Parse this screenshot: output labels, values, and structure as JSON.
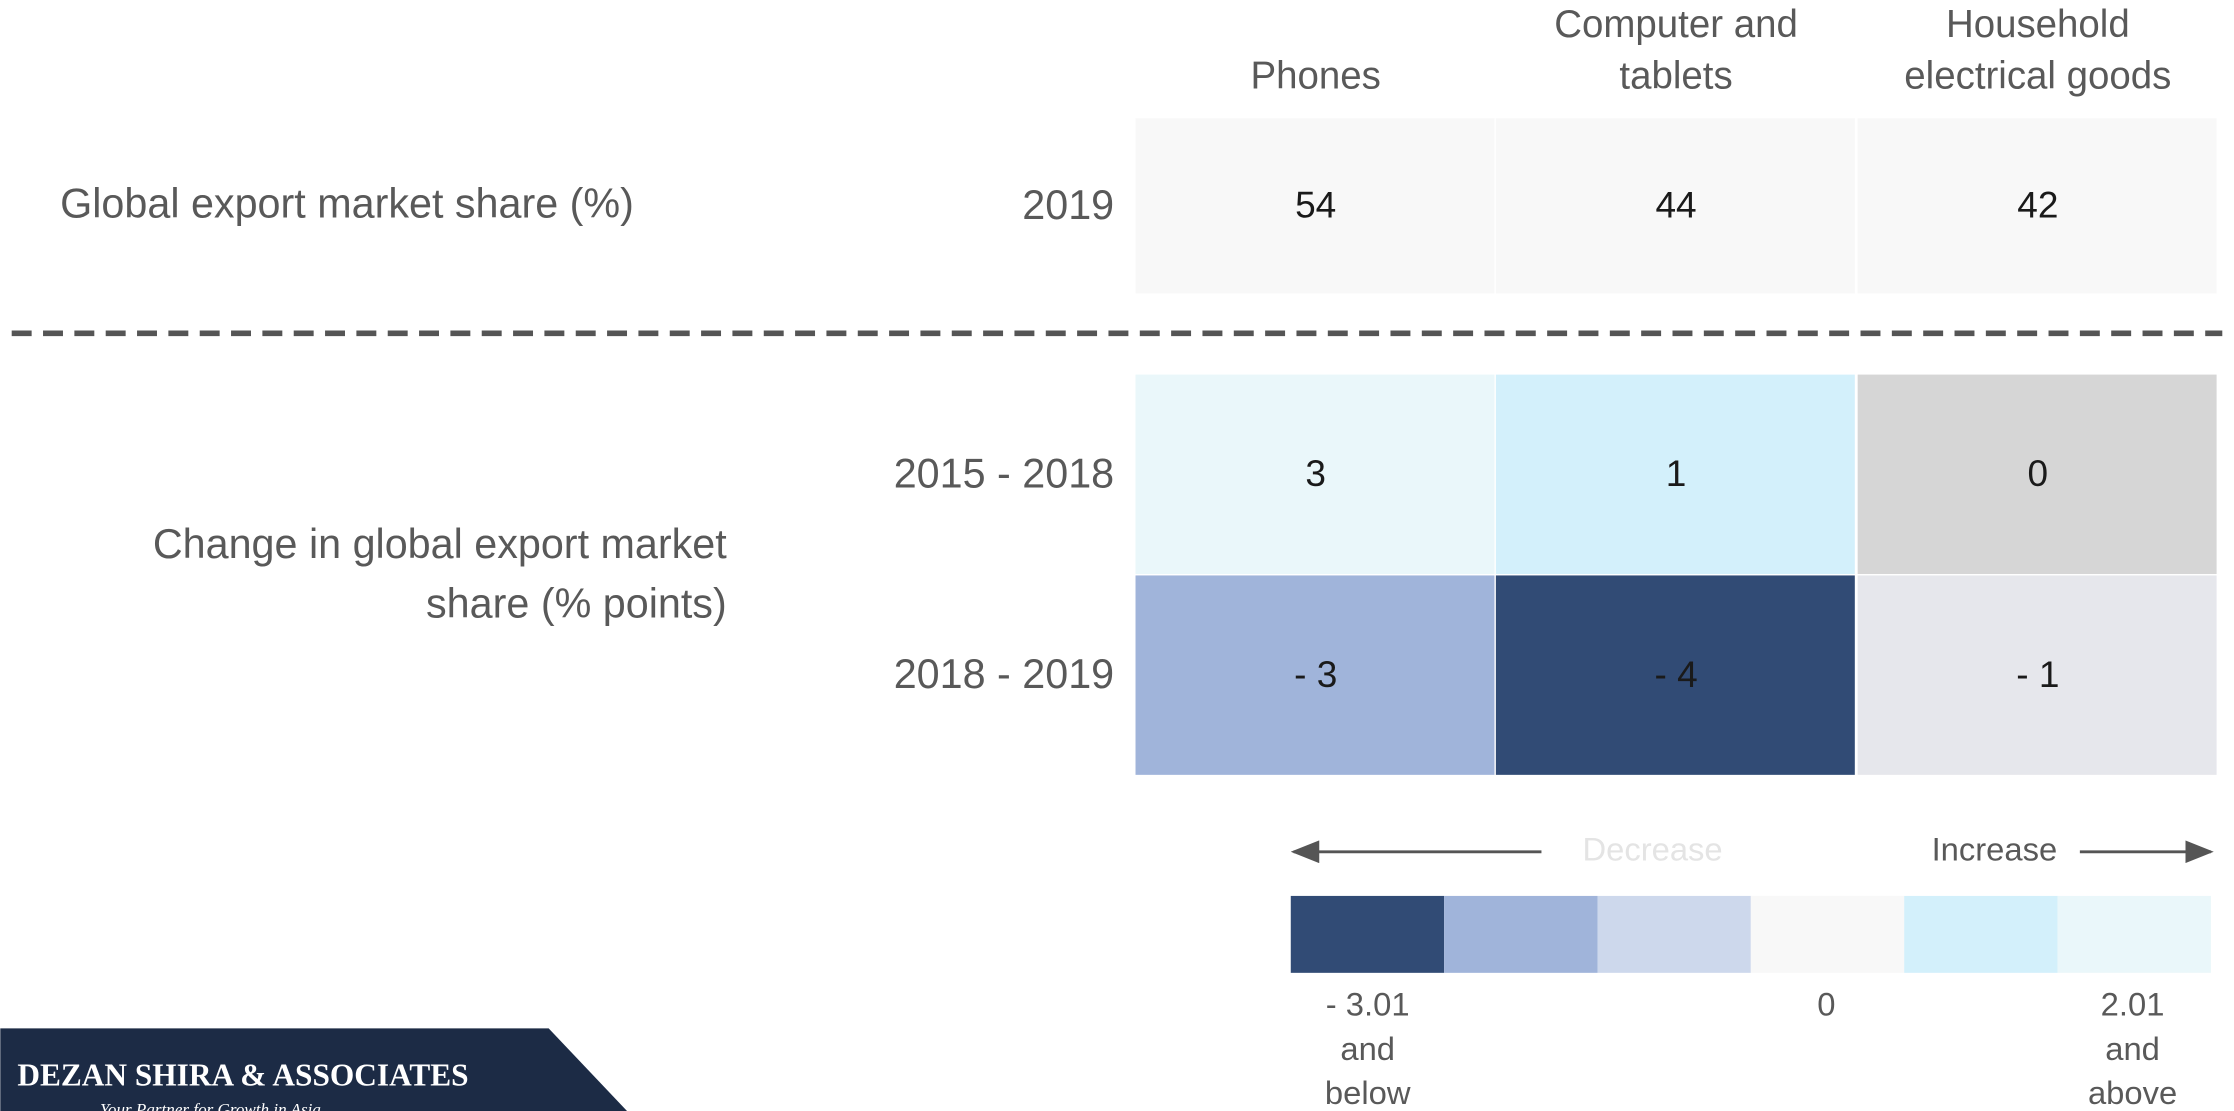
{
  "columns": [
    [
      "Phones"
    ],
    [
      "Computer and",
      "tablets"
    ],
    [
      "Household",
      "electrical goods"
    ]
  ],
  "row_groups": [
    {
      "label": [
        "Global export market share (%)"
      ],
      "rows": [
        {
          "period": "2019",
          "cells": [
            {
              "text": "54",
              "color": "#f8f8f8"
            },
            {
              "text": "44",
              "color": "#f8f8f8"
            },
            {
              "text": "42",
              "color": "#f8f8f8"
            }
          ]
        }
      ]
    },
    {
      "label": [
        "Change in global export market",
        "share (% points)"
      ],
      "rows": [
        {
          "period": "2015 - 2018",
          "cells": [
            {
              "text": "3",
              "color": "#eaf7fa"
            },
            {
              "text": "1",
              "color": "#d3f0fb"
            },
            {
              "text": "0",
              "color": "#d6d6d6"
            }
          ]
        },
        {
          "period": "2018 - 2019",
          "cells": [
            {
              "text": "- 3",
              "color": "#a0b4da"
            },
            {
              "text": "- 4",
              "color": "#314b75"
            },
            {
              "text": "- 1",
              "color": "#e6e7ec"
            }
          ]
        }
      ]
    }
  ],
  "legend": {
    "decrease": "Decrease",
    "increase": "Increase",
    "swatches": [
      "#314b75",
      "#a0b4da",
      "#cdd8ec",
      "#f8f8f8",
      "#d3f0fb",
      "#eaf7fa"
    ],
    "low": [
      "- 3.01",
      "and",
      "below"
    ],
    "mid": [
      "0"
    ],
    "high": [
      "2.01",
      "and",
      "above"
    ]
  },
  "logo": {
    "name": "DEZAN SHIRA & ASSOCIATES",
    "tagline": "Your Partner for Growth in Asia"
  }
}
